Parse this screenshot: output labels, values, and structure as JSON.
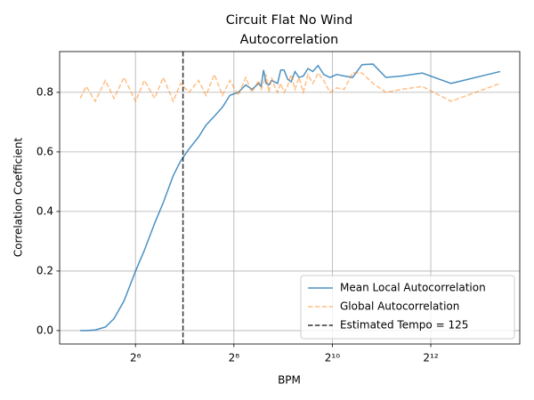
{
  "chart_data": {
    "type": "line",
    "title": [
      "Circuit Flat No Wind",
      "Autocorrelation"
    ],
    "xlabel": "BPM",
    "ylabel": "Correlation Coefficient",
    "xscale": "log2",
    "grid": true,
    "legend": "lower right",
    "x": [
      29.4,
      32.0,
      36.3,
      41.9,
      47.3,
      54.5,
      64.1,
      72.6,
      83.8,
      94.7,
      108.9,
      121,
      136.1,
      155.6,
      172.9,
      194.5,
      217.8,
      242,
      272.3,
      302.5,
      330,
      363,
      375.5,
      388.9,
      403.3,
      418.8,
      435.6,
      453.8,
      473.5,
      495,
      518.6,
      544.5,
      573.2,
      605,
      640.6,
      680.6,
      726,
      777.9,
      837.7,
      907.5,
      990,
      1089,
      1210,
      1361.3,
      1555.7,
      1815,
      2178,
      2722.5,
      3630,
      5445,
      10890
    ],
    "series": [
      {
        "name": "Mean Local Autocorrelation",
        "color": "#1f77b4",
        "style": "solid",
        "values": [
          0,
          0,
          0.002,
          0.012,
          0.04,
          0.1,
          0.2,
          0.27,
          0.36,
          0.43,
          0.52,
          0.57,
          0.61,
          0.65,
          0.69,
          0.72,
          0.75,
          0.79,
          0.8,
          0.825,
          0.81,
          0.83,
          0.82,
          0.875,
          0.83,
          0.825,
          0.84,
          0.835,
          0.83,
          0.875,
          0.875,
          0.845,
          0.835,
          0.87,
          0.85,
          0.855,
          0.88,
          0.87,
          0.89,
          0.86,
          0.85,
          0.86,
          0.855,
          0.85,
          0.893,
          0.895,
          0.85,
          0.855,
          0.865,
          0.83,
          0.87
        ]
      },
      {
        "name": "Global Autocorrelation",
        "color": "#ff7f0e",
        "style": "dashed",
        "values": [
          0.78,
          0.82,
          0.77,
          0.84,
          0.78,
          0.85,
          0.77,
          0.84,
          0.78,
          0.85,
          0.77,
          0.83,
          0.8,
          0.84,
          0.79,
          0.86,
          0.79,
          0.84,
          0.79,
          0.85,
          0.8,
          0.84,
          0.81,
          0.83,
          0.86,
          0.8,
          0.85,
          0.82,
          0.8,
          0.83,
          0.8,
          0.82,
          0.86,
          0.81,
          0.85,
          0.8,
          0.86,
          0.83,
          0.865,
          0.84,
          0.8,
          0.815,
          0.81,
          0.865,
          0.865,
          0.83,
          0.8,
          0.81,
          0.82,
          0.77,
          0.83
        ]
      }
    ],
    "tempo": 125,
    "tempo_label": "Estimated Tempo = 125",
    "tempo_color": "#000000",
    "xlim": [
      22,
      14340
    ],
    "ylim": [
      -0.045,
      0.937
    ],
    "xticks": [
      {
        "value": 64,
        "label": "2⁶"
      },
      {
        "value": 256,
        "label": "2⁸"
      },
      {
        "value": 1024,
        "label": "2¹⁰"
      },
      {
        "value": 4096,
        "label": "2¹²"
      }
    ],
    "yticks": [
      {
        "value": 0,
        "label": "0.0"
      },
      0.2,
      0.4,
      0.6,
      0.8
    ]
  }
}
